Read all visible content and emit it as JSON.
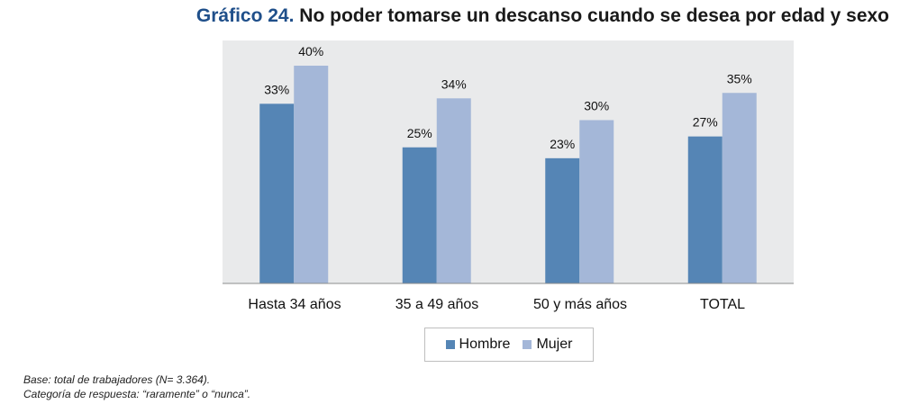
{
  "title": {
    "prefix": "Gráfico 24.",
    "text": "No poder tomarse un descanso cuando se desea por edad y sexo"
  },
  "colors": {
    "hombre": "#5585b5",
    "mujer": "#a4b7d8",
    "plot_bg": "#e9eaeb"
  },
  "chart_data": {
    "type": "bar",
    "categories": [
      "Hasta 34 años",
      "35 a 49 años",
      "50 y más años",
      "TOTAL"
    ],
    "series": [
      {
        "name": "Hombre",
        "values": [
          33,
          25,
          23,
          27
        ],
        "labels": [
          "33%",
          "25%",
          "23%",
          "27%"
        ]
      },
      {
        "name": "Mujer",
        "values": [
          40,
          34,
          30,
          35
        ],
        "labels": [
          "40%",
          "34%",
          "30%",
          "35%"
        ]
      }
    ],
    "ylim": [
      0,
      45
    ],
    "xlabel": "",
    "ylabel": "",
    "grid": false,
    "legend_position": "bottom"
  },
  "notes": {
    "base": "Base: total de trabajadores (N= 3.364).",
    "category": "Categoría de respuesta: “raramente” o “nunca”."
  }
}
